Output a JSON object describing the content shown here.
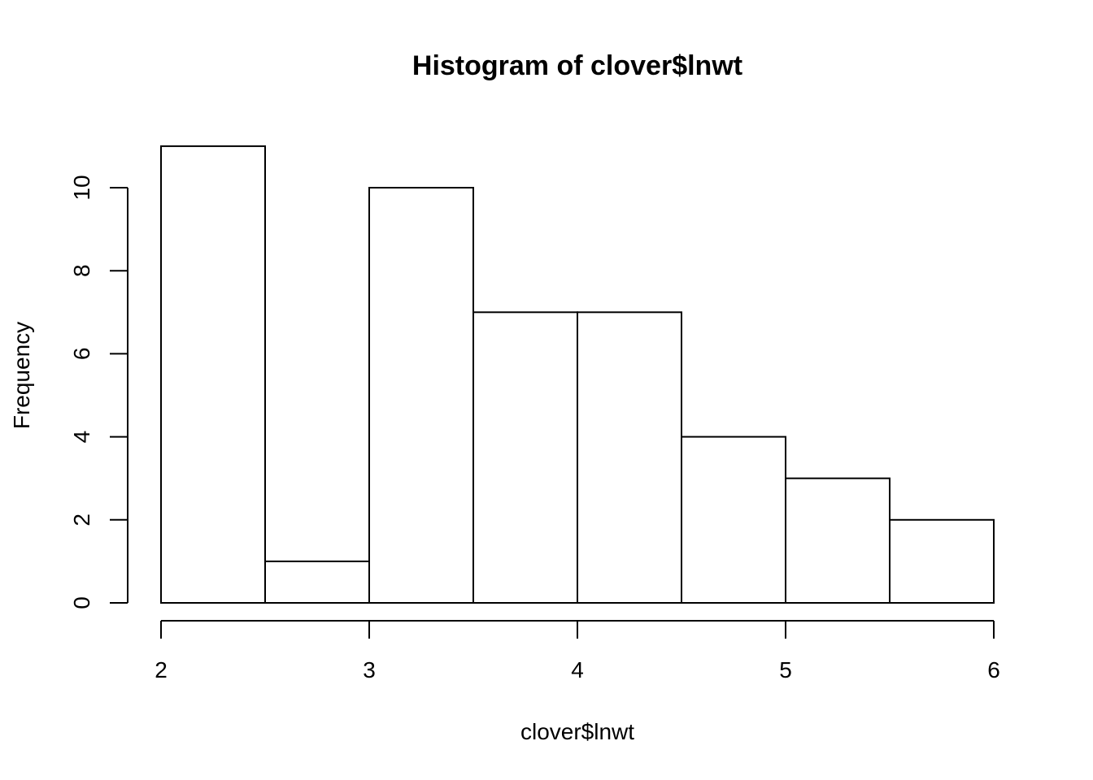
{
  "chart_data": {
    "type": "bar",
    "title": "Histogram of clover$lnwt",
    "xlabel": "clover$lnwt",
    "ylabel": "Frequency",
    "bin_edges": [
      2,
      2.5,
      3,
      3.5,
      4,
      4.5,
      5,
      5.5,
      6
    ],
    "values": [
      11,
      1,
      10,
      7,
      7,
      4,
      3,
      2
    ],
    "xlim": [
      2,
      6
    ],
    "ylim": [
      0,
      11
    ],
    "x_ticks": [
      2,
      3,
      4,
      5,
      6
    ],
    "y_ticks": [
      0,
      2,
      4,
      6,
      8,
      10
    ],
    "grid": false,
    "colors": {
      "bar_fill": "#ffffff",
      "bar_stroke": "#000000"
    }
  }
}
